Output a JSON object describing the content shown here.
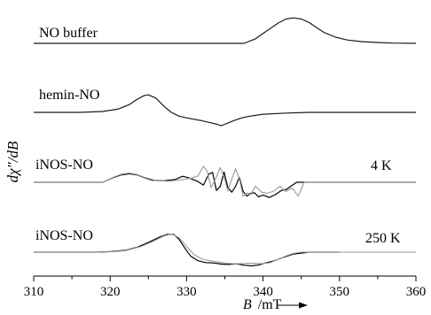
{
  "chart_data": {
    "type": "line",
    "xlabel": "B /mT",
    "xlabel_var": "B",
    "xlabel_unit": "/mT",
    "ylabel": "dχ″/dB",
    "xlim": [
      310,
      360
    ],
    "xticks": [
      310,
      320,
      330,
      340,
      350,
      360
    ],
    "xtick_labels": [
      "310",
      "320",
      "330",
      "340",
      "350",
      "360"
    ],
    "grid": false,
    "series": [
      {
        "name": "NO buffer",
        "color": "#1a1a1a",
        "x": [
          310,
          328,
          337.5,
          339,
          340.5,
          342,
          343,
          344,
          345,
          346,
          347,
          348,
          349.5,
          351,
          353,
          355,
          357,
          360
        ],
        "y": [
          0,
          0,
          0,
          0.16,
          0.44,
          0.72,
          0.86,
          0.9,
          0.86,
          0.74,
          0.56,
          0.38,
          0.22,
          0.12,
          0.06,
          0.03,
          0.01,
          0
        ]
      },
      {
        "name": "hemin-NO",
        "color": "#1a1a1a",
        "x": [
          310,
          316,
          319,
          321,
          322.5,
          323.5,
          324.5,
          325,
          326,
          327,
          328,
          329,
          330,
          331,
          332,
          333,
          334,
          334.5,
          335,
          336,
          337,
          338,
          340,
          343,
          346,
          360
        ],
        "y": [
          0,
          0,
          0.04,
          0.14,
          0.34,
          0.56,
          0.74,
          0.76,
          0.62,
          0.28,
          0,
          -0.16,
          -0.24,
          -0.3,
          -0.36,
          -0.44,
          -0.52,
          -0.58,
          -0.52,
          -0.38,
          -0.26,
          -0.18,
          -0.08,
          -0.03,
          0,
          0
        ]
      },
      {
        "name": "iNOS-NO 4 K",
        "label": "4 K",
        "color": "#000000",
        "x": [
          310,
          319,
          320.5,
          321.5,
          322.5,
          323.5,
          324.5,
          325.5,
          327,
          328.5,
          329.5,
          330.5,
          331.5,
          332.2,
          332.9,
          333.4,
          333.9,
          334.4,
          334.9,
          335.4,
          335.9,
          336.4,
          336.9,
          337.4,
          337.9,
          338.4,
          338.9,
          339.4,
          340,
          340.8,
          341.6,
          342.4,
          343,
          343.6,
          344.4,
          360
        ],
        "y": [
          0,
          0,
          0.28,
          0.42,
          0.48,
          0.42,
          0.26,
          0.12,
          0.08,
          0.16,
          0.34,
          0.22,
          0.04,
          -0.16,
          0.46,
          0.56,
          -0.46,
          -0.24,
          0.58,
          -0.28,
          -0.56,
          -0.24,
          0.28,
          -0.52,
          -0.78,
          -0.62,
          -0.6,
          -0.82,
          -0.72,
          -0.86,
          -0.7,
          -0.46,
          -0.42,
          -0.24,
          0,
          0
        ]
      },
      {
        "name": "iNOS-NO 4 K (simulation)",
        "color": "#9a9a9a",
        "x": [
          310,
          319,
          320.5,
          321.5,
          322.5,
          323.5,
          324.5,
          326,
          327.5,
          329,
          330.5,
          331.5,
          332.2,
          332.7,
          333.2,
          333.8,
          334.4,
          334.9,
          335.4,
          335.9,
          336.4,
          336.9,
          337.4,
          337.9,
          338.4,
          339,
          339.8,
          340.6,
          341.4,
          342.2,
          343,
          343.8,
          344.6,
          345.4,
          360
        ],
        "y": [
          0,
          0,
          0.3,
          0.46,
          0.52,
          0.44,
          0.28,
          0.1,
          0.06,
          0.12,
          0.22,
          0.36,
          0.9,
          0.6,
          -0.3,
          0.2,
          0.84,
          0.3,
          -0.5,
          0.18,
          0.76,
          0.2,
          -0.8,
          -0.6,
          -0.7,
          -0.22,
          -0.56,
          -0.62,
          -0.5,
          -0.22,
          -0.52,
          -0.32,
          -0.78,
          0,
          0
        ]
      },
      {
        "name": "iNOS-NO 250 K",
        "label": "250 K",
        "color": "#000000",
        "x": [
          310,
          318,
          320,
          322,
          323.5,
          325,
          326.5,
          327.5,
          328.3,
          329,
          329.8,
          330.5,
          331.5,
          332.5,
          333.5,
          334.5,
          335.5,
          336.5,
          337.5,
          338.5,
          339.5,
          340.5,
          341.5,
          342.5,
          344,
          346,
          350
        ],
        "y": [
          0,
          0,
          0.03,
          0.1,
          0.26,
          0.52,
          0.82,
          0.96,
          0.96,
          0.7,
          0.2,
          -0.2,
          -0.46,
          -0.56,
          -0.58,
          -0.64,
          -0.66,
          -0.62,
          -0.7,
          -0.74,
          -0.68,
          -0.56,
          -0.46,
          -0.3,
          -0.1,
          0,
          0
        ]
      },
      {
        "name": "iNOS-NO 250 K (simulation)",
        "color": "#9a9a9a",
        "x": [
          310,
          318,
          320,
          322,
          324,
          325.5,
          327,
          328,
          329,
          330,
          331,
          332,
          333,
          334,
          335,
          336,
          337,
          338,
          339,
          340,
          341,
          342,
          343,
          344,
          345,
          360
        ],
        "y": [
          0,
          0,
          0.02,
          0.08,
          0.3,
          0.56,
          0.86,
          0.98,
          0.78,
          0.3,
          -0.14,
          -0.36,
          -0.46,
          -0.52,
          -0.58,
          -0.62,
          -0.62,
          -0.6,
          -0.6,
          -0.62,
          -0.56,
          -0.38,
          -0.2,
          -0.06,
          0,
          0
        ]
      }
    ]
  }
}
